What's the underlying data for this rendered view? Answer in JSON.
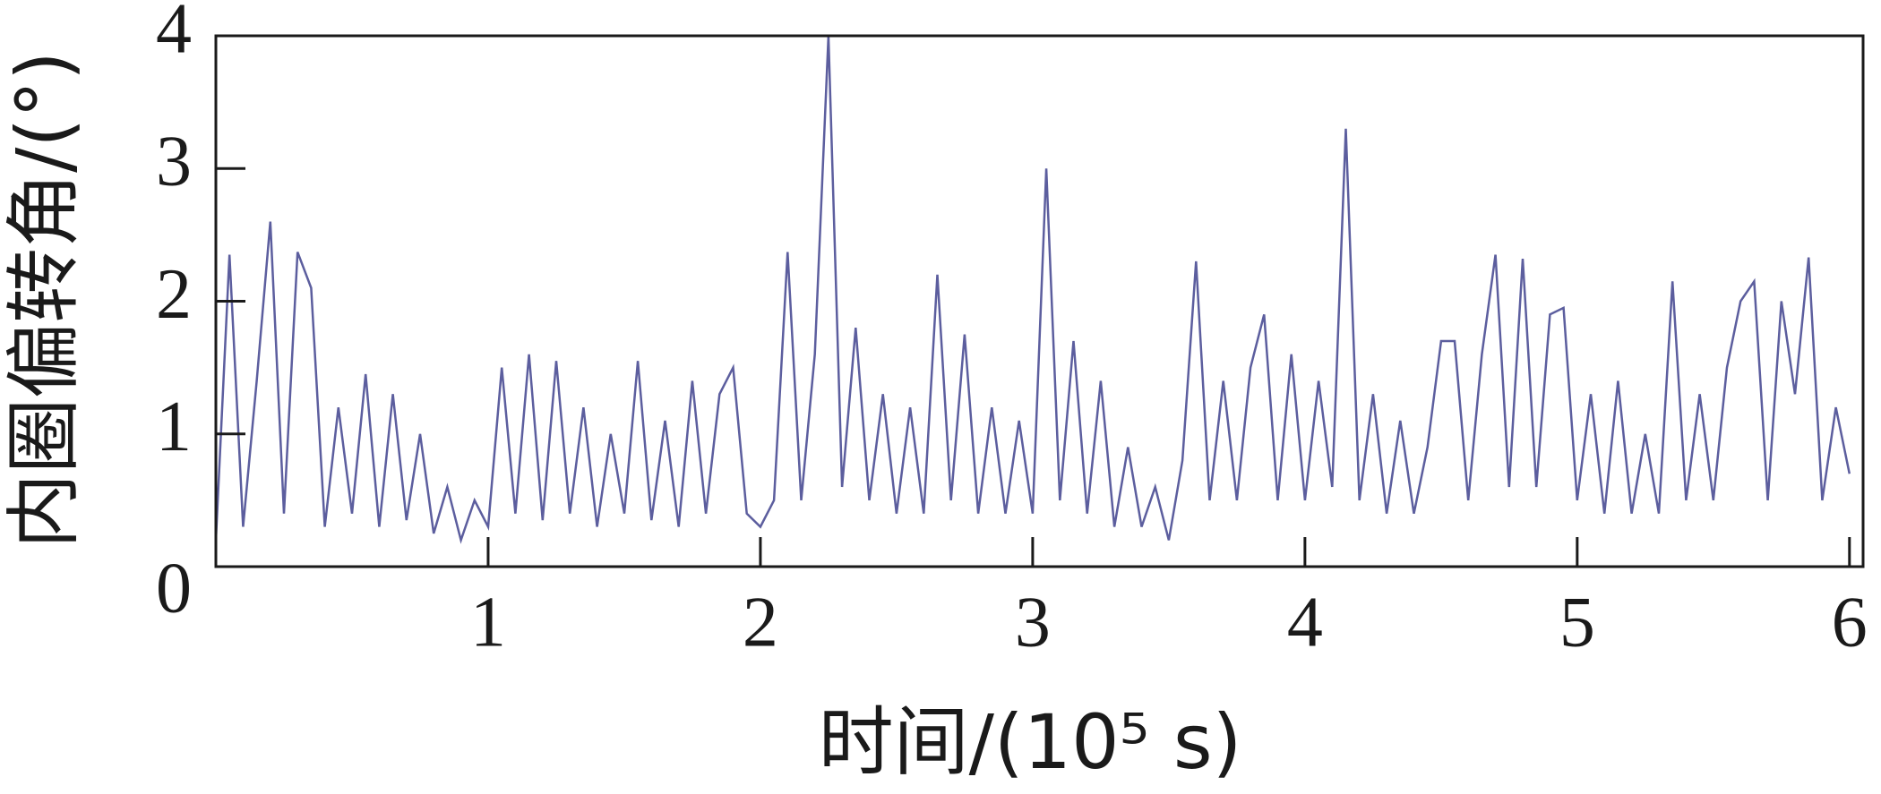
{
  "chart_data": {
    "type": "line",
    "ylabel": "内圈偏转角/(°)",
    "xlabel": "时间/(10⁵ s)",
    "x": [
      0,
      0.05,
      0.1,
      0.15,
      0.2,
      0.25,
      0.3,
      0.35,
      0.4,
      0.45,
      0.5,
      0.55,
      0.6,
      0.65,
      0.7,
      0.75,
      0.8,
      0.85,
      0.9,
      0.95,
      1,
      1.05,
      1.1,
      1.15,
      1.2,
      1.25,
      1.3,
      1.35,
      1.4,
      1.45,
      1.5,
      1.55,
      1.6,
      1.65,
      1.7,
      1.75,
      1.8,
      1.85,
      1.9,
      1.95,
      2,
      2.05,
      2.1,
      2.15,
      2.2,
      2.25,
      2.3,
      2.35,
      2.4,
      2.45,
      2.5,
      2.55,
      2.6,
      2.65,
      2.7,
      2.75,
      2.8,
      2.85,
      2.9,
      2.95,
      3,
      3.05,
      3.1,
      3.15,
      3.2,
      3.25,
      3.3,
      3.35,
      3.4,
      3.45,
      3.5,
      3.55,
      3.6,
      3.65,
      3.7,
      3.75,
      3.8,
      3.85,
      3.9,
      3.95,
      4,
      4.05,
      4.1,
      4.15,
      4.2,
      4.25,
      4.3,
      4.35,
      4.4,
      4.45,
      4.5,
      4.55,
      4.6,
      4.65,
      4.7,
      4.75,
      4.8,
      4.85,
      4.9,
      4.95,
      5,
      5.05,
      5.1,
      5.15,
      5.2,
      5.25,
      5.3,
      5.35,
      5.4,
      5.45,
      5.5,
      5.55,
      5.6,
      5.65,
      5.7,
      5.75,
      5.8,
      5.85,
      5.9,
      5.95,
      6
    ],
    "values": [
      0.2,
      2.35,
      0.3,
      1.4,
      2.6,
      0.4,
      2.37,
      2.1,
      0.3,
      1.2,
      0.4,
      1.45,
      0.3,
      1.3,
      0.35,
      1.0,
      0.25,
      0.6,
      0.2,
      0.5,
      0.3,
      1.5,
      0.4,
      1.6,
      0.35,
      1.55,
      0.4,
      1.2,
      0.3,
      1.0,
      0.4,
      1.55,
      0.35,
      1.1,
      0.3,
      1.4,
      0.4,
      1.3,
      1.5,
      0.4,
      0.3,
      0.5,
      2.37,
      0.5,
      1.6,
      4.0,
      0.6,
      1.8,
      0.5,
      1.3,
      0.4,
      1.2,
      0.4,
      2.2,
      0.5,
      1.75,
      0.4,
      1.2,
      0.4,
      1.1,
      0.4,
      3.0,
      0.5,
      1.7,
      0.4,
      1.4,
      0.3,
      0.9,
      0.3,
      0.6,
      0.2,
      0.8,
      2.3,
      0.5,
      1.4,
      0.5,
      1.5,
      1.9,
      0.5,
      1.6,
      0.5,
      1.4,
      0.6,
      3.3,
      0.5,
      1.3,
      0.4,
      1.1,
      0.4,
      0.9,
      1.7,
      1.7,
      0.5,
      1.6,
      2.35,
      0.6,
      2.32,
      0.6,
      1.9,
      1.95,
      0.5,
      1.3,
      0.4,
      1.4,
      0.4,
      1.0,
      0.4,
      2.15,
      0.5,
      1.3,
      0.5,
      1.5,
      2.0,
      2.15,
      0.5,
      2.0,
      1.3,
      2.33,
      0.5,
      1.2,
      0.7
    ],
    "color": "#5c5e9e",
    "xlim": [
      0,
      6.05
    ],
    "xticks": [
      1,
      2,
      3,
      4,
      5,
      6
    ],
    "ylim": [
      0,
      4
    ],
    "yticks": [
      0,
      1,
      2,
      3,
      4
    ],
    "grid": false
  }
}
